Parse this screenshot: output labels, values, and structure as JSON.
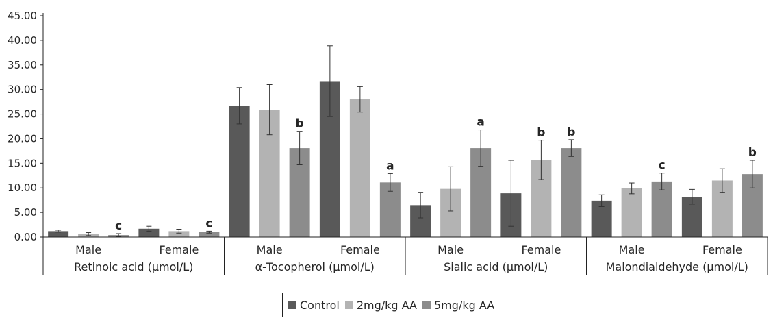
{
  "chart_data": {
    "type": "bar",
    "ylim": [
      0,
      45
    ],
    "y_ticks": [
      "0.00",
      "5.00",
      "10.00",
      "15.00",
      "20.00",
      "25.00",
      "30.00",
      "35.00",
      "40.00",
      "45.00"
    ],
    "grid": false,
    "legend_position": "bottom",
    "groups": [
      "Retinoic acid (µmol/L)",
      "α-Tocopherol (µmol/L)",
      "Sialic acid (µmol/L)",
      "Malondialdehyde (µmol/L)"
    ],
    "categories": [
      "Male",
      "Female",
      "Male",
      "Female",
      "Male",
      "Female",
      "Male",
      "Female"
    ],
    "series": [
      {
        "name": "Control",
        "color": "#595959",
        "values": [
          1.2,
          1.7,
          26.7,
          31.7,
          6.5,
          8.9,
          7.4,
          8.2
        ],
        "errors": [
          0.2,
          0.5,
          3.7,
          7.2,
          2.6,
          6.7,
          1.2,
          1.5
        ]
      },
      {
        "name": "2mg/kg AA",
        "color": "#b3b3b3",
        "values": [
          0.6,
          1.2,
          25.9,
          28.0,
          9.8,
          15.7,
          9.9,
          11.5
        ],
        "errors": [
          0.3,
          0.4,
          5.1,
          2.6,
          4.5,
          4.0,
          1.1,
          2.4
        ]
      },
      {
        "name": "5mg/kg AA",
        "color": "#8c8c8c",
        "values": [
          0.4,
          1.0,
          18.1,
          11.1,
          18.1,
          18.1,
          11.3,
          12.8
        ],
        "errors": [
          0.3,
          0.2,
          3.4,
          1.8,
          3.7,
          1.7,
          1.7,
          2.8
        ]
      }
    ],
    "annotations": [
      {
        "series": 2,
        "category": 0,
        "text": "c"
      },
      {
        "series": 2,
        "category": 1,
        "text": "c"
      },
      {
        "series": 2,
        "category": 2,
        "text": "b"
      },
      {
        "series": 2,
        "category": 3,
        "text": "a"
      },
      {
        "series": 2,
        "category": 4,
        "text": "a"
      },
      {
        "series": 1,
        "category": 5,
        "text": "b"
      },
      {
        "series": 2,
        "category": 5,
        "text": "b"
      },
      {
        "series": 2,
        "category": 6,
        "text": "c"
      },
      {
        "series": 2,
        "category": 7,
        "text": "b"
      }
    ]
  }
}
